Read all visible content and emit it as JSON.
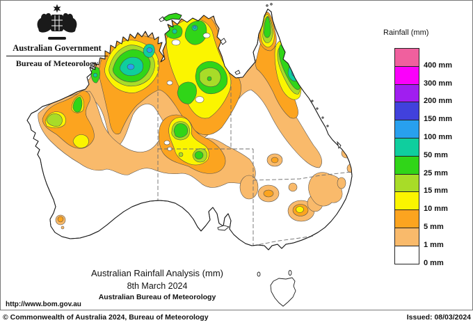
{
  "header": {
    "government": "Australian Government",
    "bureau": "Bureau of Meteorology"
  },
  "legend": {
    "title": "Rainfall (mm)",
    "entries": [
      {
        "label": "400 mm",
        "color": "#F0609E"
      },
      {
        "label": "300 mm",
        "color": "#FB00FB"
      },
      {
        "label": "200 mm",
        "color": "#A01EF0"
      },
      {
        "label": "150 mm",
        "color": "#4141DC"
      },
      {
        "label": "100 mm",
        "color": "#28A0EE"
      },
      {
        "label": "50 mm",
        "color": "#0FCE9E"
      },
      {
        "label": "25 mm",
        "color": "#30D518"
      },
      {
        "label": "15 mm",
        "color": "#A8DC28"
      },
      {
        "label": "10 mm",
        "color": "#FBF500"
      },
      {
        "label": "5 mm",
        "color": "#FCA41F"
      },
      {
        "label": "1 mm",
        "color": "#F9BA6B"
      },
      {
        "label": "0 mm",
        "color": "#FFFFFF"
      }
    ]
  },
  "palette": {
    "sand": "#F9BA6B",
    "orange": "#FCA41F",
    "yellow": "#FBF500",
    "yellowgreen": "#A8DC28",
    "green": "#30D518",
    "teal": "#0FCE9E",
    "lightblue": "#28A0EE",
    "indigo": "#4141DC",
    "white": "#FFFFFF"
  },
  "map_titles": {
    "title": "Australian Rainfall Analysis (mm)",
    "date": "8th March 2024",
    "source": "Australian Bureau of Meteorology"
  },
  "url": "http://www.bom.gov.au",
  "footer": {
    "copyright": "© Commonwealth of Australia 2024, Bureau of Meteorology",
    "issued": "Issued: 08/03/2024"
  }
}
